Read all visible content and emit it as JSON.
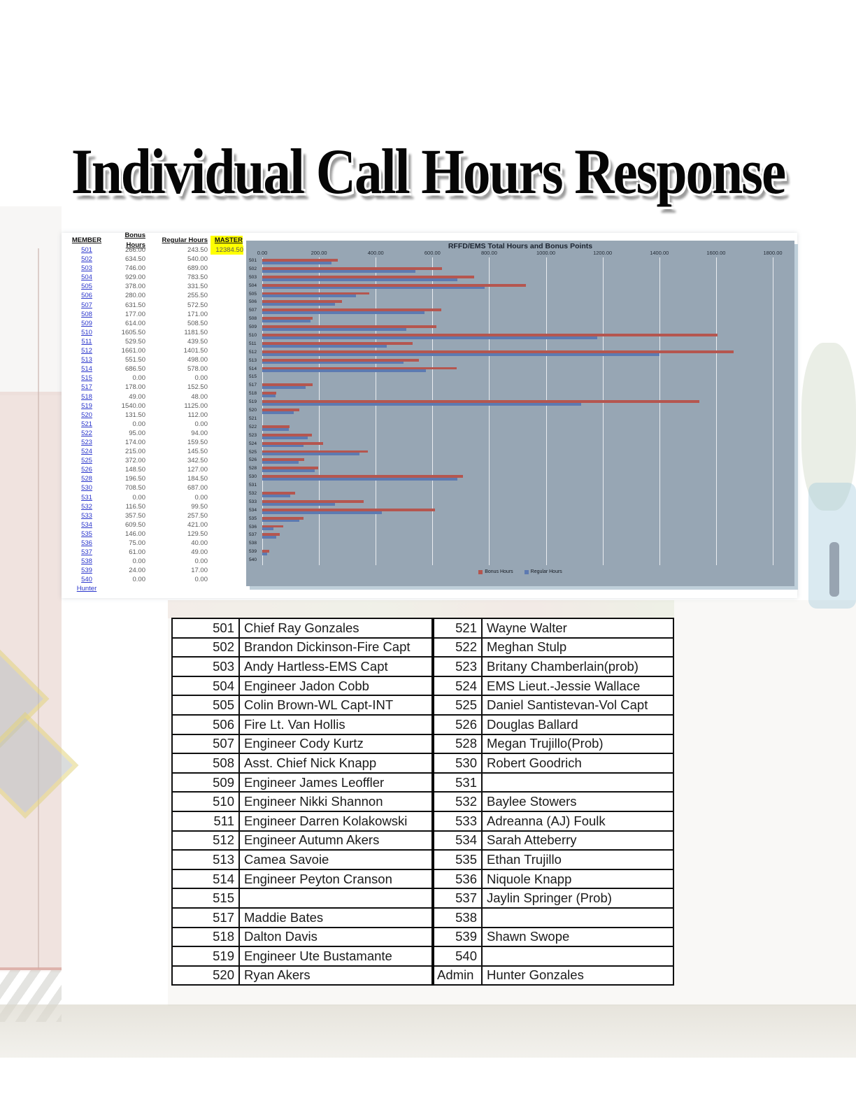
{
  "page": {
    "title": "Individual Call Hours Response"
  },
  "sheet": {
    "headers": {
      "member": "MEMBER",
      "bonus": "Bonus Hours",
      "regular": "Regular Hours",
      "master": "MASTER"
    },
    "master_total": "12384.50",
    "rows": [
      {
        "id": "501",
        "bonus": "266.00",
        "regular": "243.50"
      },
      {
        "id": "502",
        "bonus": "634.50",
        "regular": "540.00"
      },
      {
        "id": "503",
        "bonus": "746.00",
        "regular": "689.00"
      },
      {
        "id": "504",
        "bonus": "929.00",
        "regular": "783.50"
      },
      {
        "id": "505",
        "bonus": "378.00",
        "regular": "331.50"
      },
      {
        "id": "506",
        "bonus": "280.00",
        "regular": "255.50"
      },
      {
        "id": "507",
        "bonus": "631.50",
        "regular": "572.50"
      },
      {
        "id": "508",
        "bonus": "177.00",
        "regular": "171.00"
      },
      {
        "id": "509",
        "bonus": "614.00",
        "regular": "508.50"
      },
      {
        "id": "510",
        "bonus": "1605.50",
        "regular": "1181.50"
      },
      {
        "id": "511",
        "bonus": "529.50",
        "regular": "439.50"
      },
      {
        "id": "512",
        "bonus": "1661.00",
        "regular": "1401.50"
      },
      {
        "id": "513",
        "bonus": "551.50",
        "regular": "498.00"
      },
      {
        "id": "514",
        "bonus": "686.50",
        "regular": "578.00"
      },
      {
        "id": "515",
        "bonus": "0.00",
        "regular": "0.00"
      },
      {
        "id": "517",
        "bonus": "178.00",
        "regular": "152.50"
      },
      {
        "id": "518",
        "bonus": "49.00",
        "regular": "48.00"
      },
      {
        "id": "519",
        "bonus": "1540.00",
        "regular": "1125.00"
      },
      {
        "id": "520",
        "bonus": "131.50",
        "regular": "112.00"
      },
      {
        "id": "521",
        "bonus": "0.00",
        "regular": "0.00"
      },
      {
        "id": "522",
        "bonus": "95.00",
        "regular": "94.00"
      },
      {
        "id": "523",
        "bonus": "174.00",
        "regular": "159.50"
      },
      {
        "id": "524",
        "bonus": "215.00",
        "regular": "145.50"
      },
      {
        "id": "525",
        "bonus": "372.00",
        "regular": "342.50"
      },
      {
        "id": "526",
        "bonus": "148.50",
        "regular": "127.00"
      },
      {
        "id": "528",
        "bonus": "196.50",
        "regular": "184.50"
      },
      {
        "id": "530",
        "bonus": "708.50",
        "regular": "687.00"
      },
      {
        "id": "531",
        "bonus": "0.00",
        "regular": "0.00"
      },
      {
        "id": "532",
        "bonus": "116.50",
        "regular": "99.50"
      },
      {
        "id": "533",
        "bonus": "357.50",
        "regular": "257.50"
      },
      {
        "id": "534",
        "bonus": "609.50",
        "regular": "421.00"
      },
      {
        "id": "535",
        "bonus": "146.00",
        "regular": "129.50"
      },
      {
        "id": "536",
        "bonus": "75.00",
        "regular": "40.00"
      },
      {
        "id": "537",
        "bonus": "61.00",
        "regular": "49.00"
      },
      {
        "id": "538",
        "bonus": "0.00",
        "regular": "0.00"
      },
      {
        "id": "539",
        "bonus": "24.00",
        "regular": "17.00"
      },
      {
        "id": "540",
        "bonus": "0.00",
        "regular": "0.00"
      },
      {
        "id": "Hunter",
        "bonus": "",
        "regular": ""
      }
    ]
  },
  "chart_data": {
    "type": "bar",
    "orientation": "horizontal",
    "title": "RFFD/EMS  Total Hours and Bonus Points",
    "x_ticks": [
      "0.00",
      "200.00",
      "400.00",
      "600.00",
      "800.00",
      "1000.00",
      "1200.00",
      "1400.00",
      "1600.00",
      "1800.00"
    ],
    "xlim": [
      0,
      1800
    ],
    "grid": true,
    "legend_position": "bottom",
    "plot_bg": "#97a6b4",
    "categories": [
      "501",
      "502",
      "503",
      "504",
      "505",
      "506",
      "507",
      "508",
      "509",
      "510",
      "511",
      "512",
      "513",
      "514",
      "515",
      "517",
      "518",
      "519",
      "520",
      "521",
      "522",
      "523",
      "524",
      "525",
      "526",
      "528",
      "530",
      "531",
      "532",
      "533",
      "534",
      "535",
      "536",
      "537",
      "538",
      "539",
      "540"
    ],
    "series": [
      {
        "name": "Bonus Hours",
        "color": "#b5564f",
        "values": [
          266,
          634.5,
          746,
          929,
          378,
          280,
          631.5,
          177,
          614,
          1605.5,
          529.5,
          1661,
          551.5,
          686.5,
          0,
          178,
          49,
          1540,
          131.5,
          0,
          95,
          174,
          215,
          372,
          148.5,
          196.5,
          708.5,
          0,
          116.5,
          357.5,
          609.5,
          146,
          75,
          61,
          0,
          24,
          0
        ]
      },
      {
        "name": "Regular Hours",
        "color": "#5d7ab1",
        "values": [
          243.5,
          540,
          689,
          783.5,
          331.5,
          255.5,
          572.5,
          171,
          508.5,
          1181.5,
          439.5,
          1401.5,
          498,
          578,
          0,
          152.5,
          48,
          1125,
          112,
          0,
          94,
          159.5,
          145.5,
          342.5,
          127,
          184.5,
          687,
          0,
          99.5,
          257.5,
          421,
          129.5,
          40,
          49,
          0,
          17,
          0
        ]
      }
    ]
  },
  "roster": {
    "left": [
      {
        "id": "501",
        "name": "Chief Ray Gonzales"
      },
      {
        "id": "502",
        "name": "Brandon Dickinson-Fire Capt"
      },
      {
        "id": "503",
        "name": "Andy Hartless-EMS Capt"
      },
      {
        "id": "504",
        "name": "Engineer Jadon Cobb"
      },
      {
        "id": "505",
        "name": "Colin Brown-WL Capt-INT"
      },
      {
        "id": "506",
        "name": "Fire Lt. Van Hollis"
      },
      {
        "id": "507",
        "name": "Engineer Cody Kurtz"
      },
      {
        "id": "508",
        "name": "Asst. Chief Nick Knapp"
      },
      {
        "id": "509",
        "name": "Engineer James Leoffler"
      },
      {
        "id": "510",
        "name": "Engineer Nikki Shannon"
      },
      {
        "id": "511",
        "name": "Engineer Darren Kolakowski"
      },
      {
        "id": "512",
        "name": "Engineer Autumn Akers"
      },
      {
        "id": "513",
        "name": "Camea Savoie"
      },
      {
        "id": "514",
        "name": "Engineer Peyton Cranson"
      },
      {
        "id": "515",
        "name": ""
      },
      {
        "id": "517",
        "name": "Maddie Bates"
      },
      {
        "id": "518",
        "name": "Dalton Davis"
      },
      {
        "id": "519",
        "name": "Engineer Ute Bustamante"
      },
      {
        "id": "520",
        "name": "Ryan Akers"
      }
    ],
    "right": [
      {
        "id": "521",
        "name": "Wayne Walter"
      },
      {
        "id": "522",
        "name": "Meghan Stulp"
      },
      {
        "id": "523",
        "name": "Britany Chamberlain(prob)"
      },
      {
        "id": "524",
        "name": "EMS Lieut.-Jessie Wallace"
      },
      {
        "id": "525",
        "name": "Daniel Santistevan-Vol Capt"
      },
      {
        "id": "526",
        "name": "Douglas Ballard"
      },
      {
        "id": "528",
        "name": "Megan Trujillo(Prob)"
      },
      {
        "id": "530",
        "name": "Robert Goodrich"
      },
      {
        "id": "531",
        "name": ""
      },
      {
        "id": "532",
        "name": "Baylee Stowers"
      },
      {
        "id": "533",
        "name": "Adreanna (AJ) Foulk"
      },
      {
        "id": "534",
        "name": "Sarah Atteberry"
      },
      {
        "id": "535",
        "name": "Ethan Trujillo"
      },
      {
        "id": "536",
        "name": "Niquole Knapp"
      },
      {
        "id": "537",
        "name": "Jaylin Springer (Prob)"
      },
      {
        "id": "538",
        "name": ""
      },
      {
        "id": "539",
        "name": "Shawn Swope"
      },
      {
        "id": "540",
        "name": ""
      },
      {
        "id": "Admin",
        "name": "Hunter Gonzales"
      }
    ]
  }
}
